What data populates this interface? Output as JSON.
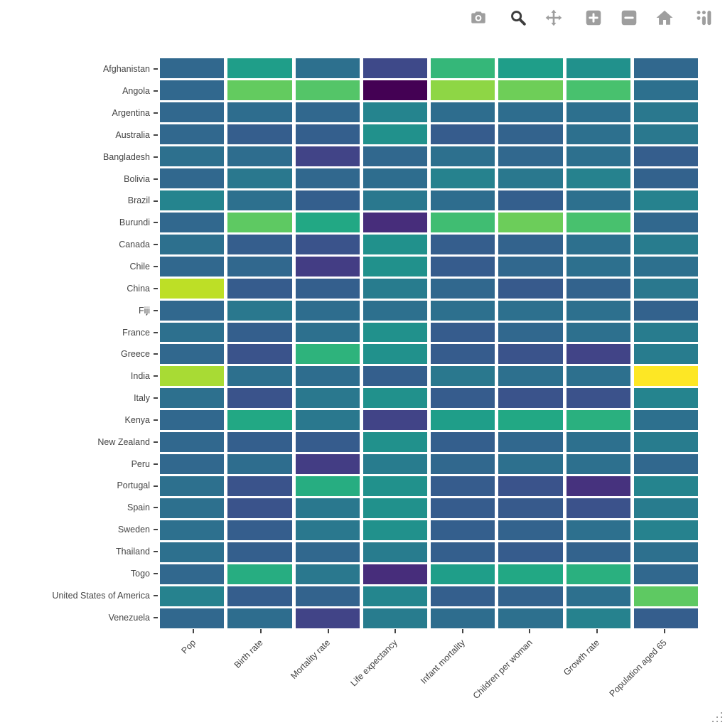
{
  "background": "#ffffff",
  "toolbar": {
    "active_color": "#3d3d3d",
    "inactive_color": "#9e9e9e",
    "buttons": [
      {
        "icon": "camera-icon",
        "active": false
      },
      {
        "icon": "zoom-icon",
        "active": true
      },
      {
        "icon": "pan-icon",
        "active": false
      },
      {
        "icon": "zoom-in-icon",
        "active": false
      },
      {
        "icon": "zoom-out-icon",
        "active": false
      },
      {
        "icon": "home-icon",
        "active": false
      },
      {
        "icon": "plotly-logo-icon",
        "active": false
      }
    ]
  },
  "chart_data": {
    "type": "heatmap",
    "title": "",
    "colorscale": "viridis",
    "grid": "off",
    "legend_position": "none",
    "tick_color": "#444444",
    "label_color": "#444444",
    "x_categories": [
      "Pop",
      "Birth rate",
      "Mortality rate",
      "Life expectancy",
      "Infant mortality",
      "Children per woman",
      "Growth rate",
      "Population aged 65"
    ],
    "y_categories": [
      "Afghanistan",
      "Angola",
      "Argentina",
      "Australia",
      "Bangladesh",
      "Bolivia",
      "Brazil",
      "Burundi",
      "Canada",
      "Chile",
      "China",
      "Fiji",
      "France",
      "Greece",
      "India",
      "Italy",
      "Kenya",
      "New Zealand",
      "Peru",
      "Portugal",
      "Spain",
      "Sweden",
      "Thailand",
      "Togo",
      "United States of America",
      "Venezuela"
    ],
    "cell_colors": [
      [
        "#31688e",
        "#1f9e89",
        "#2d708e",
        "#3e4989",
        "#35b779",
        "#1f9e89",
        "#21918c",
        "#31688e"
      ],
      [
        "#31688e",
        "#63cb5f",
        "#54c568",
        "#440154",
        "#8ed645",
        "#6ece58",
        "#48c16e",
        "#2d708e"
      ],
      [
        "#31688e",
        "#2e6d8e",
        "#31688e",
        "#25848e",
        "#2e6d8e",
        "#2e6d8e",
        "#2d708e",
        "#2a788e"
      ],
      [
        "#31688e",
        "#355e8d",
        "#345f8d",
        "#21918c",
        "#365c8d",
        "#33638d",
        "#2d708e",
        "#2a788e"
      ],
      [
        "#2d708e",
        "#2e6d8e",
        "#414487",
        "#31688e",
        "#2d708e",
        "#31688e",
        "#2d708e",
        "#355e8d"
      ],
      [
        "#31688e",
        "#2a788e",
        "#31688e",
        "#2e6d8e",
        "#26828e",
        "#2a788e",
        "#26828e",
        "#33628d"
      ],
      [
        "#25848e",
        "#2d708e",
        "#345f8d",
        "#2a788e",
        "#2e6d8e",
        "#345f8d",
        "#2d708e",
        "#26828e"
      ],
      [
        "#31688e",
        "#5ec962",
        "#22a884",
        "#472d7b",
        "#40bd72",
        "#6ccd5a",
        "#48c16e",
        "#31688e"
      ],
      [
        "#2d708e",
        "#355e8d",
        "#3a538b",
        "#21918c",
        "#355e8d",
        "#33638d",
        "#2d708e",
        "#287c8e"
      ],
      [
        "#31688e",
        "#31688e",
        "#433d84",
        "#21918c",
        "#365c8d",
        "#31688e",
        "#2d708e",
        "#2d708e"
      ],
      [
        "#bddf26",
        "#365c8d",
        "#345f8d",
        "#287c8e",
        "#31688e",
        "#375a8c",
        "#33638d",
        "#2a788e"
      ],
      [
        "#31688e",
        "#2a788e",
        "#2e6d8e",
        "#2d708e",
        "#2d708e",
        "#2d708e",
        "#2d708e",
        "#33628d"
      ],
      [
        "#2d708e",
        "#345f8d",
        "#2d708e",
        "#21918c",
        "#365c8d",
        "#31688e",
        "#2d708e",
        "#287c8e"
      ],
      [
        "#31688e",
        "#3a538b",
        "#2eb37c",
        "#21918c",
        "#365c8d",
        "#3a538b",
        "#414487",
        "#287c8e"
      ],
      [
        "#a8db34",
        "#2d708e",
        "#2e6d8e",
        "#345f8d",
        "#2a788e",
        "#2d708e",
        "#2d708e",
        "#fde725"
      ],
      [
        "#2d708e",
        "#3a538b",
        "#2a788e",
        "#21918c",
        "#365c8d",
        "#3a538b",
        "#3b528b",
        "#25848e"
      ],
      [
        "#31688e",
        "#22a884",
        "#2a788e",
        "#414487",
        "#1f9e89",
        "#22a884",
        "#2ab07f",
        "#2d708e"
      ],
      [
        "#31688e",
        "#345f8d",
        "#365c8d",
        "#21918c",
        "#345f8d",
        "#31688e",
        "#2d708e",
        "#287c8e"
      ],
      [
        "#31688e",
        "#2e6d8e",
        "#433d84",
        "#287c8e",
        "#31688e",
        "#2d708e",
        "#2d708e",
        "#31688e"
      ],
      [
        "#2d708e",
        "#3a538b",
        "#27ad81",
        "#21918c",
        "#365c8d",
        "#3a538b",
        "#46327e",
        "#25848e"
      ],
      [
        "#2d708e",
        "#3a538b",
        "#2a788e",
        "#21918c",
        "#365c8d",
        "#375a8c",
        "#3b528b",
        "#287c8e"
      ],
      [
        "#2d708e",
        "#355e8d",
        "#2a788e",
        "#21918c",
        "#345f8d",
        "#33638d",
        "#2d708e",
        "#26828e"
      ],
      [
        "#2d708e",
        "#345f8d",
        "#31688e",
        "#287c8e",
        "#345f8d",
        "#365c8d",
        "#33638d",
        "#2d708e"
      ],
      [
        "#31688e",
        "#27ad81",
        "#2a788e",
        "#472d7b",
        "#1f9e89",
        "#22a884",
        "#2ab07f",
        "#31688e"
      ],
      [
        "#26828e",
        "#355e8d",
        "#33638d",
        "#24868e",
        "#345f8d",
        "#33638d",
        "#2d708e",
        "#5ec962"
      ],
      [
        "#31688e",
        "#2e6d8e",
        "#414487",
        "#287c8e",
        "#2e6d8e",
        "#2d708e",
        "#26828e",
        "#355e8d"
      ]
    ]
  }
}
